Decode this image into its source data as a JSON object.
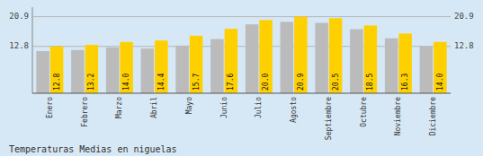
{
  "chart_data": {
    "type": "bar",
    "title": "Temperaturas Medias en niguelas",
    "categories": [
      "Enero",
      "Febrero",
      "Marzo",
      "Abril",
      "Mayo",
      "Junio",
      "Julio",
      "Agosto",
      "Septiembre",
      "Octubre",
      "Noviembre",
      "Diciembre"
    ],
    "series": [
      {
        "color": "#BBBBBB",
        "values": [
          11.5,
          11.8,
          12.5,
          12.2,
          13.0,
          14.8,
          18.8,
          19.5,
          19.2,
          17.5,
          15.0,
          12.8
        ]
      },
      {
        "color": "#FFD000",
        "values": [
          12.8,
          13.2,
          14.0,
          14.4,
          15.7,
          17.6,
          20.0,
          20.9,
          20.5,
          18.5,
          16.3,
          14.0
        ],
        "data_labels": true,
        "value_labels": [
          "12.8",
          "13.2",
          "14.0",
          "14.4",
          "15.7",
          "17.6",
          "20.0",
          "20.9",
          "20.5",
          "18.5",
          "16.3",
          "14.0"
        ]
      }
    ],
    "ylim": [
      0,
      23.5
    ],
    "yticks": [
      12.8,
      20.9
    ],
    "grid": true
  }
}
